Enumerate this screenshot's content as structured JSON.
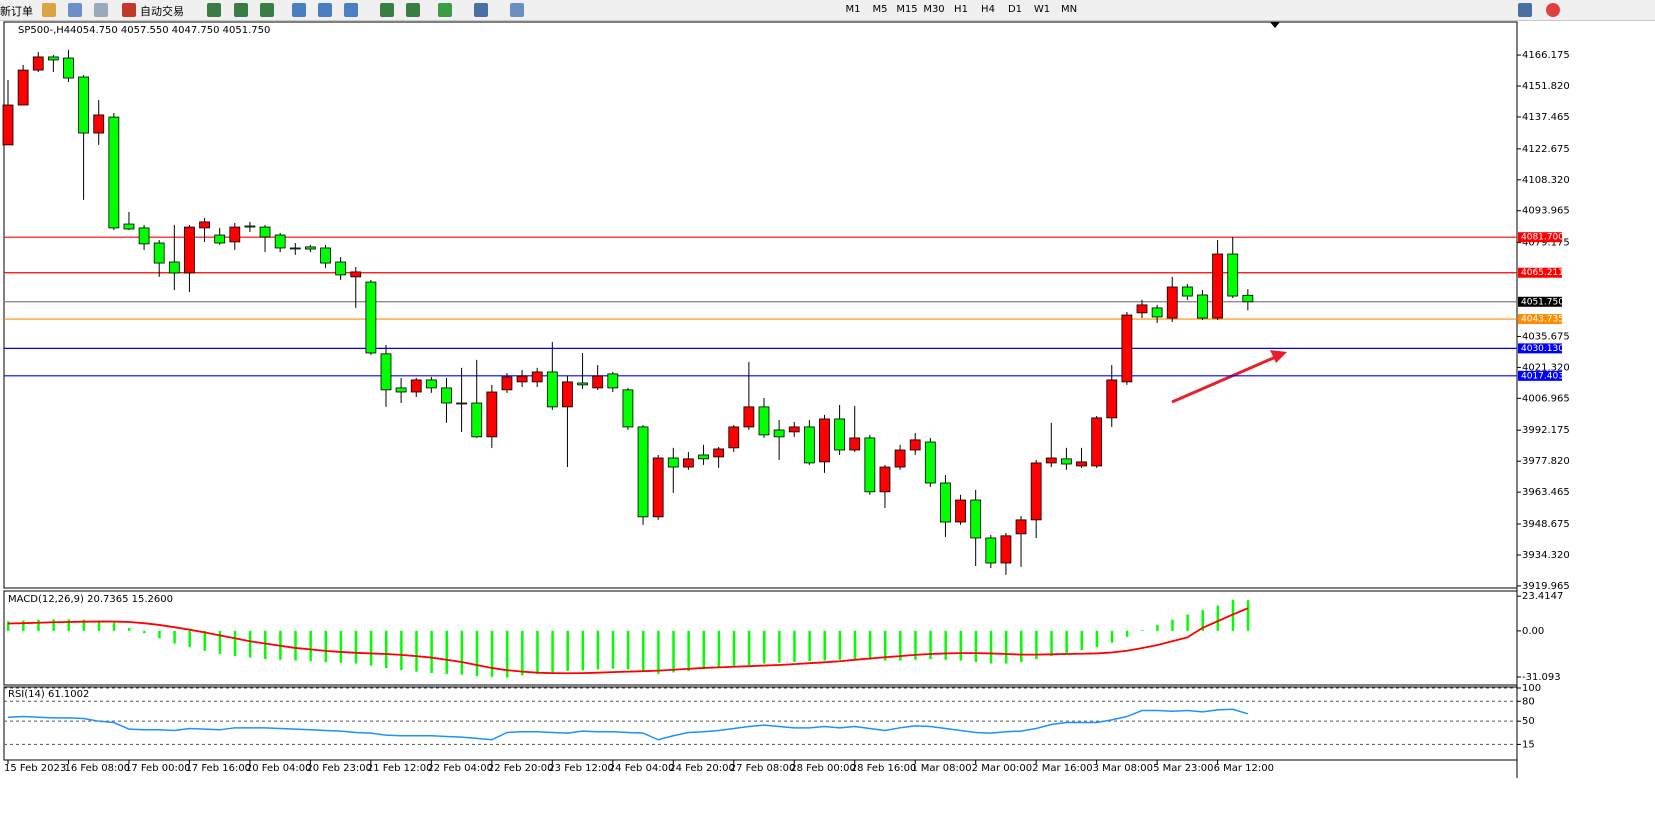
{
  "toolbar": {
    "new_order": "新订单",
    "auto_trade": "自动交易",
    "timeframes": [
      "M1",
      "M5",
      "M15",
      "M30",
      "H1",
      "H4",
      "D1",
      "W1",
      "MN"
    ]
  },
  "chart_data": [
    {
      "type": "candlestick",
      "title": "SP500-,H4",
      "subtitle": "4054.750 4057.550 4047.750 4051.750",
      "up_color": "#ff0000",
      "down_color": "#00ff00",
      "categories": [
        "15 Feb 2023",
        null,
        null,
        null,
        "16 Feb 08:00",
        null,
        null,
        null,
        "17 Feb 00:00",
        null,
        null,
        null,
        "17 Feb 16:00",
        null,
        null,
        null,
        "20 Feb 04:00",
        null,
        null,
        null,
        "20 Feb 23:00",
        null,
        null,
        null,
        "21 Feb 12:00",
        null,
        null,
        null,
        "22 Feb 04:00",
        null,
        null,
        null,
        "22 Feb 20:00",
        null,
        null,
        null,
        "23 Feb 12:00",
        null,
        null,
        null,
        "24 Feb 04:00",
        null,
        null,
        null,
        "24 Feb 20:00",
        null,
        null,
        null,
        "27 Feb 08:00",
        null,
        null,
        null,
        "28 Feb 00:00",
        null,
        null,
        null,
        "28 Feb 16:00",
        null,
        null,
        null,
        "1 Mar 08:00",
        null,
        null,
        null,
        "2 Mar 00:00",
        null,
        null,
        null,
        "2 Mar 16:00",
        null,
        null,
        null,
        "3 Mar 08:00",
        null,
        null,
        null,
        "5 Mar 23:00",
        null,
        null,
        null,
        "6 Mar 12:00",
        null,
        null
      ],
      "open": [
        4124.5,
        4143.0,
        4159.2,
        4165.3,
        4164.8,
        4156.0,
        4130.0,
        4137.4,
        4087.8,
        4086.0,
        4079.0,
        4070.2,
        4065.1,
        4086.0,
        4082.7,
        4079.5,
        4086.9,
        4086.4,
        4082.7,
        4076.7,
        4077.2,
        4076.7,
        4070.2,
        4063.3,
        4060.9,
        4027.6,
        4011.8,
        4009.9,
        4015.5,
        4011.8,
        4004.8,
        4004.8,
        3989.1,
        4010.9,
        4014.6,
        4014.6,
        4019.2,
        4003.0,
        4014.1,
        4011.8,
        4018.3,
        4010.9,
        3993.7,
        3952.0,
        3979.3,
        3975.1,
        3980.7,
        3979.8,
        3984.0,
        3993.7,
        4003.0,
        3992.3,
        3991.4,
        3993.7,
        3977.5,
        3997.4,
        3983.0,
        3988.6,
        3963.6,
        3975.1,
        3983.0,
        3986.7,
        3967.7,
        3949.6,
        3959.8,
        3942.2,
        3930.6,
        3944.1,
        3950.6,
        3977.0,
        3978.9,
        3975.6,
        3975.6,
        3997.9,
        4014.6,
        4046.6,
        4048.9,
        4044.2,
        4058.6,
        4054.9,
        4044.2,
        4073.9,
        4054.75
      ],
      "high": [
        4154.6,
        4161.6,
        4167.6,
        4166.2,
        4168.5,
        4156.9,
        4145.3,
        4139.3,
        4093.4,
        4087.4,
        4080.4,
        4087.4,
        4087.4,
        4090.6,
        4086.0,
        4088.3,
        4088.8,
        4087.4,
        4083.7,
        4079.0,
        4078.1,
        4078.1,
        4072.5,
        4067.9,
        4061.9,
        4031.7,
        4016.4,
        4016.4,
        4016.9,
        4016.4,
        4021.1,
        4024.8,
        4013.2,
        4018.7,
        4020.1,
        4021.1,
        4033.1,
        4017.3,
        4028.0,
        4022.4,
        4019.2,
        4011.8,
        3994.6,
        3980.7,
        3984.0,
        3982.1,
        3985.4,
        3984.4,
        3994.6,
        4023.8,
        4007.1,
        3996.9,
        3996.0,
        3996.9,
        3999.3,
        4003.9,
        4003.4,
        3990.0,
        3976.1,
        3985.4,
        3990.9,
        3988.6,
        3971.4,
        3962.2,
        3964.5,
        3943.6,
        3944.5,
        3952.4,
        3978.4,
        3995.6,
        3984.0,
        3984.0,
        3998.8,
        4022.4,
        4047.0,
        4052.6,
        4050.3,
        4063.3,
        4060.0,
        4057.2,
        4080.4,
        4081.8,
        4057.55
      ],
      "low": [
        4124.5,
        4143.0,
        4158.3,
        4158.3,
        4153.7,
        4099.0,
        4124.5,
        4085.0,
        4085.0,
        4075.8,
        4063.3,
        4057.2,
        4056.3,
        4079.5,
        4078.1,
        4075.8,
        4084.1,
        4074.8,
        4074.8,
        4073.5,
        4074.8,
        4067.4,
        4061.9,
        4048.9,
        4027.1,
        4003.0,
        4004.8,
        4007.6,
        4009.5,
        3995.6,
        3991.4,
        3988.6,
        3984.0,
        4009.5,
        4012.2,
        4012.2,
        4001.6,
        3975.1,
        4011.3,
        4010.9,
        4009.9,
        3992.3,
        3948.3,
        3950.6,
        3963.1,
        3973.8,
        3976.1,
        3974.7,
        3982.1,
        3992.3,
        3988.6,
        3978.4,
        3989.1,
        3976.1,
        3972.4,
        3980.7,
        3982.1,
        3962.2,
        3956.1,
        3973.8,
        3980.7,
        3965.9,
        3942.7,
        3948.3,
        3929.2,
        3928.3,
        3925.1,
        3928.8,
        3942.2,
        3975.1,
        3973.8,
        3974.7,
        3974.7,
        3993.7,
        4013.2,
        4044.2,
        4041.9,
        4042.4,
        4052.6,
        4043.3,
        4043.3,
        4053.5,
        4047.75
      ],
      "close": [
        4143.0,
        4159.2,
        4165.3,
        4163.9,
        4155.5,
        4130.0,
        4138.4,
        4086.0,
        4085.5,
        4078.6,
        4069.7,
        4065.1,
        4086.4,
        4088.8,
        4079.0,
        4086.4,
        4086.4,
        4081.8,
        4076.7,
        4076.7,
        4076.2,
        4069.7,
        4064.2,
        4065.6,
        4028.0,
        4010.9,
        4009.9,
        4015.5,
        4011.8,
        4004.8,
        4004.8,
        3989.1,
        4009.9,
        4016.9,
        4017.3,
        4019.2,
        4003.0,
        4014.6,
        4013.2,
        4017.3,
        4011.8,
        3993.7,
        3952.0,
        3979.3,
        3975.1,
        3978.9,
        3978.9,
        3983.5,
        3993.7,
        4003.0,
        3990.0,
        3989.1,
        3993.7,
        3977.0,
        3997.4,
        3983.0,
        3988.6,
        3963.6,
        3975.1,
        3983.0,
        3987.7,
        3967.7,
        3949.6,
        3959.8,
        3942.2,
        3930.6,
        3943.2,
        3950.6,
        3977.0,
        3979.3,
        3976.5,
        3977.5,
        3997.9,
        4015.5,
        4045.6,
        4050.3,
        4044.7,
        4058.6,
        4054.4,
        4044.2,
        4073.9,
        4054.4,
        4051.75
      ],
      "ylim": [
        3919.0,
        4181.5
      ],
      "yticks": [
        4166.175,
        {
          "value": 4151.82,
          "label": "4151.820"
        },
        4137.465,
        4122.675,
        {
          "value": 4108.32,
          "label": "4108.320"
        },
        4093.965,
        4079.175,
        4035.675,
        {
          "value": 4021.32,
          "label": "4021.320"
        },
        4006.965,
        3992.175,
        {
          "value": 3977.82,
          "label": "3977.820"
        },
        3963.465,
        3948.675,
        {
          "value": 3934.32,
          "label": "3934.320"
        },
        3919.965
      ],
      "hlines": [
        {
          "value": 4081.7,
          "label": "4081.700",
          "color": "#ff0000"
        },
        {
          "value": 4065.211,
          "label": "4065.211",
          "color": "#ff0000"
        },
        {
          "value": 4051.75,
          "label": "4051.750",
          "color": "#808080"
        },
        {
          "value": 4043.735,
          "label": "4043.735",
          "color": "#ff8c00"
        },
        {
          "value": 4030.13,
          "label": "4030.130",
          "color": "#0000ff"
        },
        {
          "value": 4017.403,
          "label": "4017.403",
          "color": "#0000ff"
        }
      ]
    },
    {
      "type": "macd",
      "title": "MACD(12,26,9) 20.7365 15.2600",
      "ylim": [
        -36.5,
        26.9
      ],
      "yticks": [
        23.4147,
        {
          "value": 0,
          "label": "0.00"
        },
        -31.093
      ],
      "series": [
        {
          "type": "bar",
          "color": "#00ff00",
          "values": [
            6.5,
            7.0,
            7.5,
            7.8,
            7.8,
            7.5,
            7.0,
            5.5,
            2.0,
            -1.5,
            -5.0,
            -8.5,
            -11.0,
            -13.5,
            -15.5,
            -17.0,
            -18.0,
            -19.0,
            -19.5,
            -20.0,
            -20.5,
            -21.0,
            -21.5,
            -22.0,
            -23.5,
            -25.0,
            -26.5,
            -27.5,
            -28.5,
            -29.0,
            -29.5,
            -30.5,
            -31.0,
            -31.5,
            -30.0,
            -29.0,
            -28.0,
            -27.0,
            -26.5,
            -26.0,
            -25.5,
            -26.0,
            -27.5,
            -29.0,
            -28.0,
            -27.0,
            -26.0,
            -25.0,
            -24.0,
            -23.0,
            -22.0,
            -21.5,
            -21.0,
            -20.5,
            -20.0,
            -19.5,
            -19.0,
            -19.5,
            -20.0,
            -20.0,
            -19.5,
            -19.0,
            -19.5,
            -20.0,
            -21.0,
            -22.0,
            -22.0,
            -21.0,
            -19.0,
            -17.0,
            -15.0,
            -13.0,
            -11.0,
            -8.0,
            -4.0,
            0.5,
            4.0,
            7.5,
            11.0,
            14.0,
            17.0,
            21.0,
            20.7365
          ]
        },
        {
          "type": "line",
          "color": "#ff0000",
          "values": [
            5.0,
            5.2,
            5.5,
            5.8,
            6.0,
            6.2,
            6.3,
            6.3,
            6.0,
            5.2,
            4.0,
            2.5,
            0.8,
            -1.0,
            -3.0,
            -5.0,
            -7.0,
            -8.5,
            -10.0,
            -11.5,
            -12.5,
            -13.5,
            -14.2,
            -14.8,
            -15.2,
            -15.6,
            -16.2,
            -17.0,
            -18.0,
            -19.5,
            -21.0,
            -23.0,
            -25.0,
            -26.5,
            -27.5,
            -28.2,
            -28.5,
            -28.6,
            -28.5,
            -28.2,
            -27.8,
            -27.5,
            -27.2,
            -26.8,
            -26.2,
            -25.6,
            -25.0,
            -24.6,
            -24.2,
            -23.8,
            -23.4,
            -23.0,
            -22.4,
            -21.8,
            -21.2,
            -20.5,
            -19.5,
            -18.6,
            -17.8,
            -17.0,
            -16.2,
            -15.6,
            -15.2,
            -15.0,
            -15.0,
            -15.2,
            -15.6,
            -16.0,
            -16.0,
            -15.8,
            -15.6,
            -15.4,
            -15.2,
            -14.6,
            -13.4,
            -11.6,
            -9.6,
            -7.0,
            -4.4,
            2.0,
            6.5,
            11.0,
            15.26
          ]
        }
      ]
    },
    {
      "type": "line",
      "title": "RSI(14) 61.1002",
      "ylim": [
        -8.5,
        100
      ],
      "yticks": [
        100,
        80,
        50,
        15
      ],
      "grid": true,
      "series": [
        {
          "color": "#1e90ff",
          "values": [
            56,
            57,
            56,
            55,
            55,
            54,
            50,
            48,
            38,
            37,
            37,
            36,
            39,
            38,
            37,
            40,
            40,
            40,
            39,
            38,
            37,
            36,
            35,
            33,
            32,
            29,
            28,
            28,
            28,
            27,
            26,
            24,
            22,
            33,
            34,
            34,
            33,
            32,
            35,
            34,
            34,
            33,
            32,
            22,
            28,
            33,
            34,
            36,
            39,
            42,
            44,
            42,
            40,
            40,
            42,
            40,
            42,
            39,
            36,
            40,
            43,
            42,
            39,
            36,
            33,
            32,
            34,
            35,
            39,
            45,
            48,
            48,
            48,
            52,
            57,
            66,
            66,
            65,
            66,
            64,
            67,
            68,
            61.1002
          ]
        }
      ]
    }
  ]
}
